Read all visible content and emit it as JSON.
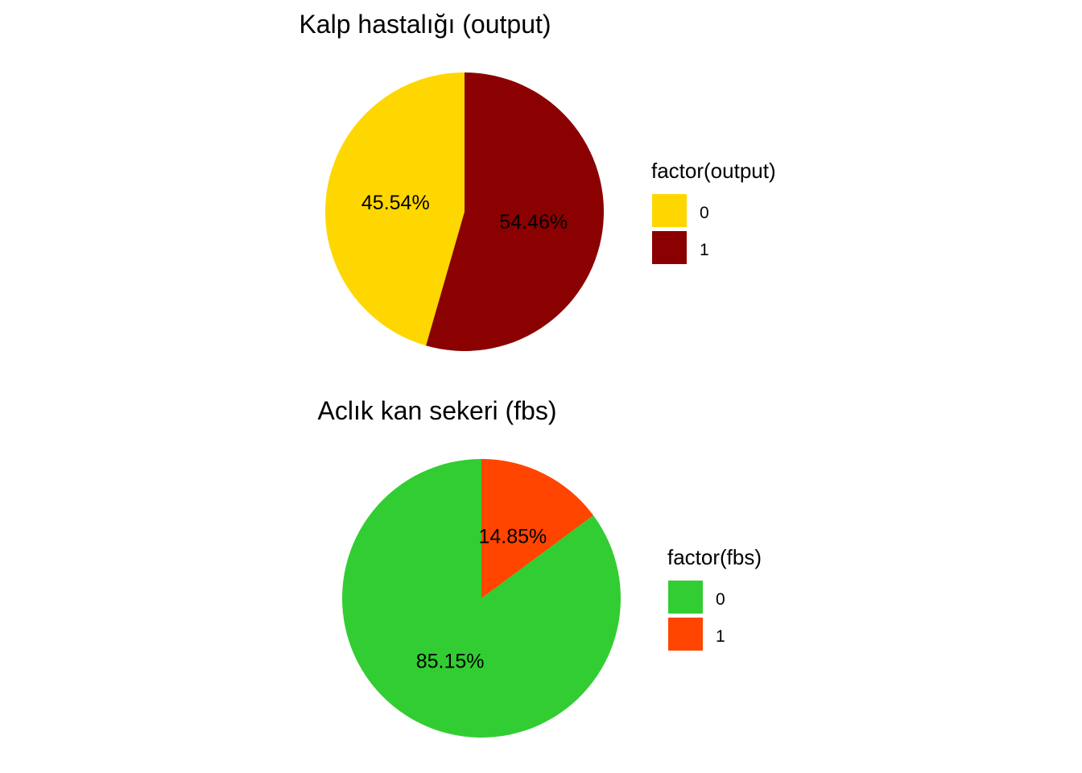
{
  "chart_data": [
    {
      "type": "pie",
      "title": "Kalp hastalığı (output)",
      "legend_title": "factor(output)",
      "legend_position": "right",
      "categories": [
        "0",
        "1"
      ],
      "values": [
        45.54,
        54.46
      ],
      "labels": [
        "45.54%",
        "54.46%"
      ],
      "colors": [
        "#FFD700",
        "#8B0000"
      ]
    },
    {
      "type": "pie",
      "title": "Aclık kan sekeri (fbs)",
      "legend_title": "factor(fbs)",
      "legend_position": "right",
      "categories": [
        "0",
        "1"
      ],
      "values": [
        85.15,
        14.85
      ],
      "labels": [
        "85.15%",
        "14.85%"
      ],
      "colors": [
        "#32CD32",
        "#FF4500"
      ]
    }
  ]
}
